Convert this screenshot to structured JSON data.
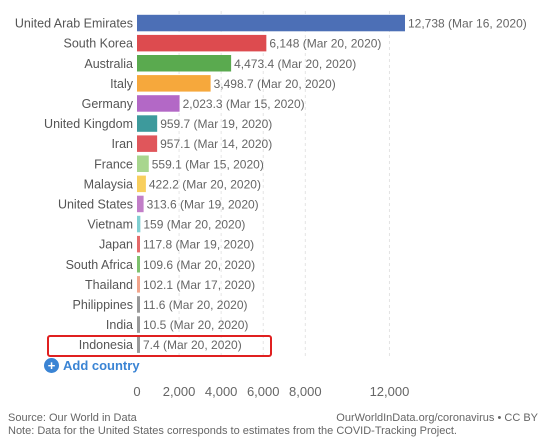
{
  "chart_data": {
    "type": "bar",
    "orientation": "horizontal",
    "categories": [
      "United Arab Emirates",
      "South Korea",
      "Australia",
      "Italy",
      "Germany",
      "United Kingdom",
      "Iran",
      "France",
      "Malaysia",
      "United States",
      "Vietnam",
      "Japan",
      "South Africa",
      "Thailand",
      "Philippines",
      "India",
      "Indonesia"
    ],
    "values": [
      12738,
      6148,
      4473.4,
      3498.7,
      2023.3,
      959.7,
      957.1,
      559.1,
      422.2,
      313.6,
      159,
      117.8,
      109.6,
      102.1,
      11.6,
      10.5,
      7.4
    ],
    "value_labels": [
      "12,738 (Mar 16, 2020)",
      "6,148 (Mar 20, 2020)",
      "4,473.4 (Mar 20, 2020)",
      "3,498.7 (Mar 20, 2020)",
      "2,023.3 (Mar 15, 2020)",
      "959.7 (Mar 19, 2020)",
      "957.1 (Mar 14, 2020)",
      "559.1 (Mar 15, 2020)",
      "422.2 (Mar 20, 2020)",
      "313.6 (Mar 19, 2020)",
      "159 (Mar 20, 2020)",
      "117.8 (Mar 19, 2020)",
      "109.6 (Mar 20, 2020)",
      "102.1 (Mar 17, 2020)",
      "11.6 (Mar 20, 2020)",
      "10.5 (Mar 20, 2020)",
      "7.4 (Mar 20, 2020)"
    ],
    "colors": [
      "#4c6fb6",
      "#dd4b4f",
      "#5aaa4f",
      "#f6a83c",
      "#b368c6",
      "#3d9a9c",
      "#e0565b",
      "#a8d68e",
      "#f8cf5d",
      "#c27ec8",
      "#7fcfd2",
      "#e56a6a",
      "#7ec16e",
      "#f2a58c",
      "#999999",
      "#999999",
      "#999999"
    ],
    "highlighted": "Indonesia",
    "xticks": [
      "0",
      "2,000",
      "4,000",
      "6,000",
      "8,000",
      "12,000"
    ],
    "xtick_values": [
      0,
      2000,
      4000,
      6000,
      8000,
      12000
    ],
    "xlim": [
      0,
      12738
    ],
    "title": "",
    "xlabel": "",
    "ylabel": ""
  },
  "controls": {
    "add_country": "Add country",
    "add_icon": "+"
  },
  "footer": {
    "source": "Source: Our World in Data",
    "license": "OurWorldInData.org/coronavirus • CC BY",
    "note": "Note: Data for the United States corresponds to estimates from the COVID-Tracking Project."
  }
}
